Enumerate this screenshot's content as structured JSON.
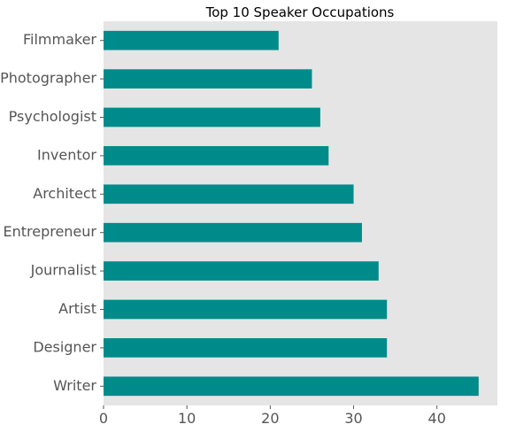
{
  "chart_data": {
    "type": "bar",
    "orientation": "horizontal",
    "title": "Top 10 Speaker Occupations",
    "xlabel": "",
    "ylabel": "",
    "categories": [
      "Writer",
      "Designer",
      "Artist",
      "Journalist",
      "Entrepreneur",
      "Architect",
      "Inventor",
      "Psychologist",
      "Photographer",
      "Filmmaker"
    ],
    "values": [
      45,
      34,
      34,
      33,
      31,
      30,
      27,
      26,
      25,
      21
    ],
    "xlim": [
      0,
      47.25
    ],
    "xticks": [
      0,
      10,
      20,
      30,
      40
    ],
    "grid": false,
    "legend": "none",
    "colors": {
      "bar": "#008b8b",
      "plot_background": "#e5e5e5",
      "tick_text": "#555555",
      "title_text": "#000000"
    }
  }
}
